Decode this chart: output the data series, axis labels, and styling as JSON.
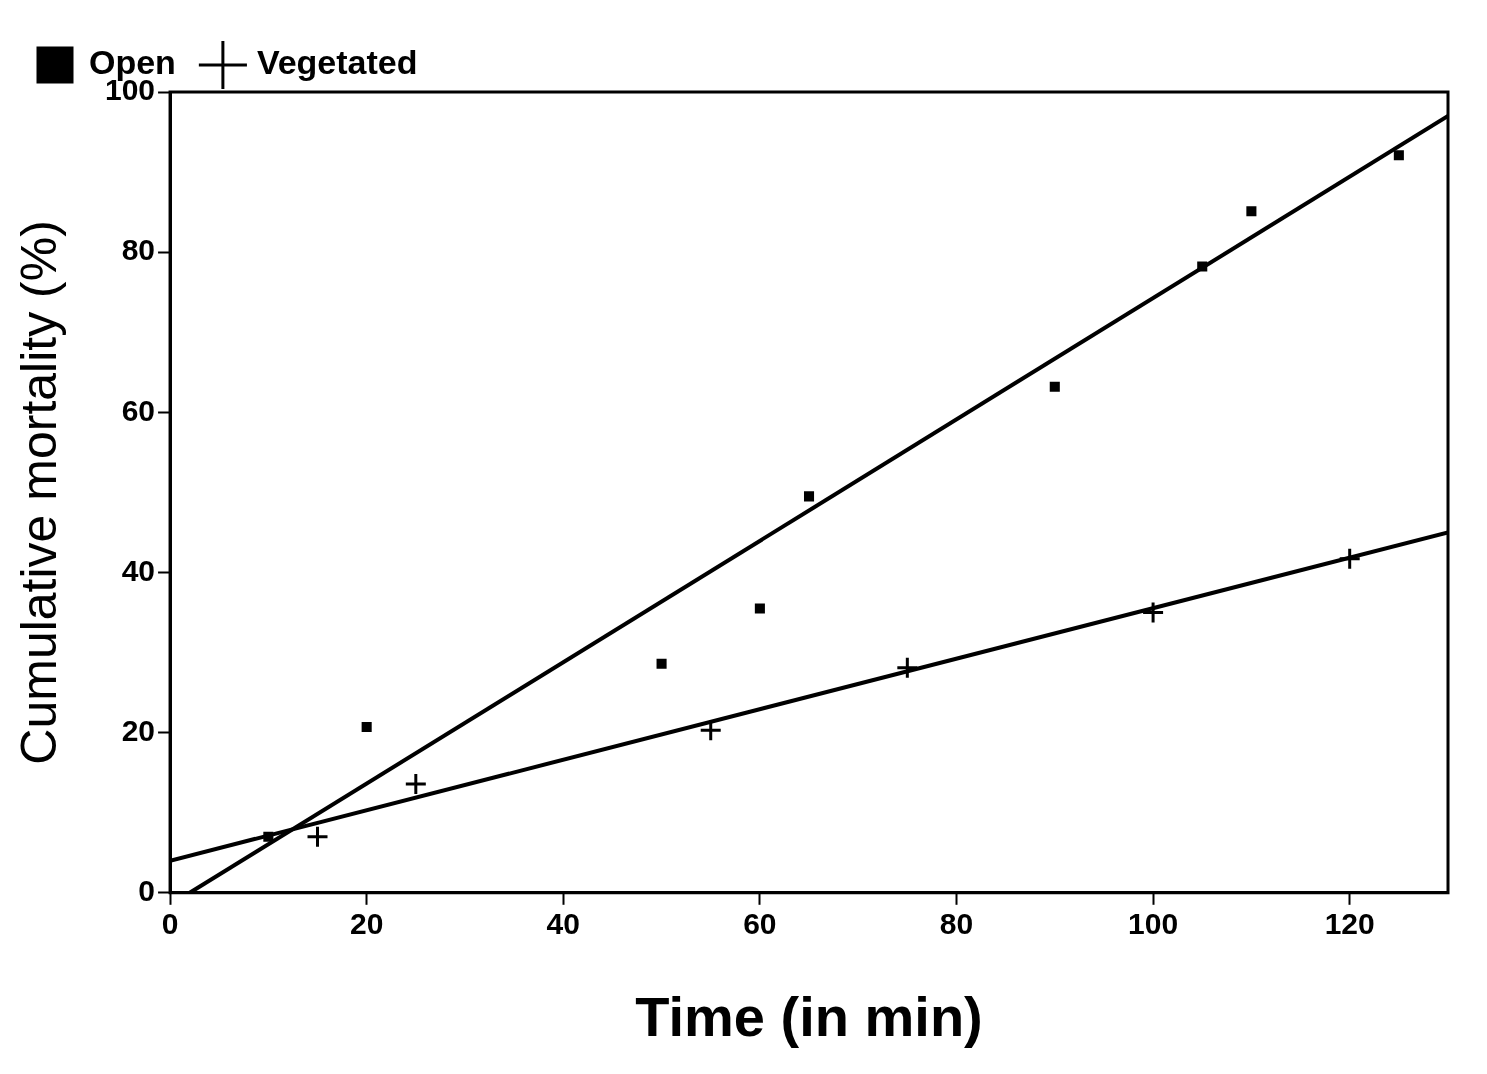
{
  "chart_data": {
    "type": "scatter",
    "xlabel": "Time (in min)",
    "ylabel": "Cumulative mortality (%)",
    "xlim": [
      0,
      130
    ],
    "ylim": [
      0,
      100
    ],
    "xticks": [
      0,
      20,
      40,
      60,
      80,
      100,
      120
    ],
    "yticks": [
      0,
      20,
      40,
      60,
      80,
      100
    ],
    "grid": false,
    "legend": "top left",
    "series": [
      {
        "name": "Open",
        "color": "#000000",
        "marker": "square",
        "x": [
          10,
          20,
          50,
          60,
          65,
          90,
          105,
          110,
          125
        ],
        "values": [
          7,
          20.7,
          28.6,
          35.5,
          49.5,
          63.2,
          78.2,
          85.1,
          92.1
        ]
      },
      {
        "name": "Vegetated",
        "color": "#000000",
        "marker": "cross",
        "x": [
          15,
          25,
          55,
          75,
          100,
          120
        ],
        "values": [
          7,
          13.6,
          20.3,
          28.1,
          35,
          41.7
        ]
      },
      {
        "type": "line",
        "color": "#000000",
        "marker": "none",
        "x": [
          2,
          130
        ],
        "values": [
          0,
          97
        ]
      },
      {
        "type": "line",
        "color": "#000000",
        "marker": "none",
        "x": [
          0,
          130
        ],
        "values": [
          4,
          45
        ]
      }
    ]
  }
}
